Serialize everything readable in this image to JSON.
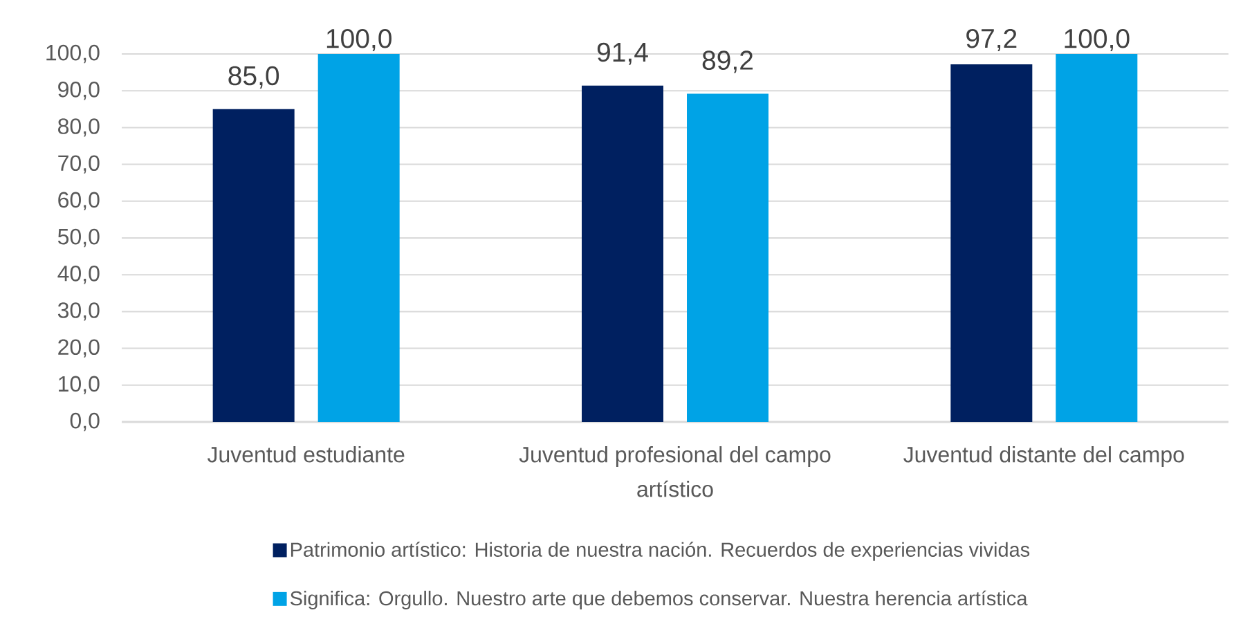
{
  "chart_data": {
    "type": "bar",
    "categories": [
      "Juventud estudiante",
      "Juventud profesional del campo artístico",
      "Juventud distante del campo"
    ],
    "series": [
      {
        "name": "Patrimonio artístico: Historia de nuestra nación. Recuerdos de experiencias vividas",
        "color": "#002060",
        "values": [
          85.0,
          91.4,
          97.2
        ],
        "value_labels": [
          "85,0",
          "91,4",
          "97,2"
        ]
      },
      {
        "name": "Significa: Orgullo. Nuestro arte que debemos conservar. Nuestra herencia artística",
        "color": "#00a3e6",
        "values": [
          100.0,
          89.2,
          100.0
        ],
        "value_labels": [
          "100,0",
          "89,2",
          "100,0"
        ]
      }
    ],
    "ylim": [
      0,
      100
    ],
    "yticks": [
      {
        "value": 0,
        "label": "0,0"
      },
      {
        "value": 10,
        "label": "10,0"
      },
      {
        "value": 20,
        "label": "20,0"
      },
      {
        "value": 30,
        "label": "30,0"
      },
      {
        "value": 40,
        "label": "40,0"
      },
      {
        "value": 50,
        "label": "50,0"
      },
      {
        "value": 60,
        "label": "60,0"
      },
      {
        "value": 70,
        "label": "70,0"
      },
      {
        "value": 80,
        "label": "80,0"
      },
      {
        "value": 90,
        "label": "90,0"
      },
      {
        "value": 100,
        "label": "100,0"
      }
    ],
    "grid": "y",
    "legend": "bottom"
  }
}
